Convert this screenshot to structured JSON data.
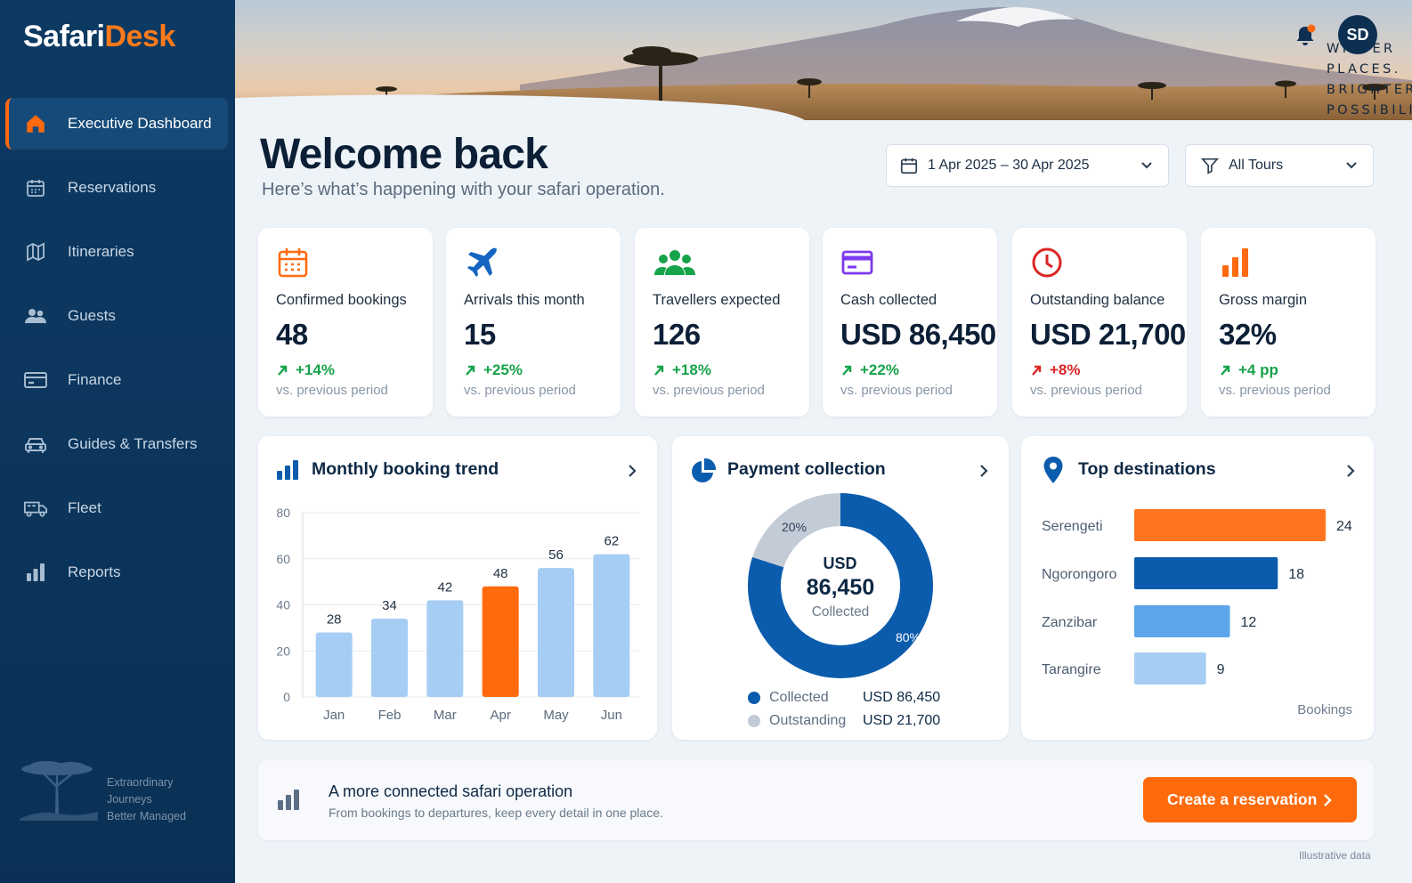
{
  "app": {
    "logo_part1": "Safari",
    "logo_part2": "Desk"
  },
  "sidebar": {
    "items": [
      {
        "label": "Executive Dashboard",
        "icon": "home-icon",
        "active": true
      },
      {
        "label": "Reservations",
        "icon": "calendar-icon"
      },
      {
        "label": "Itineraries",
        "icon": "map-icon"
      },
      {
        "label": "Guests",
        "icon": "users-icon"
      },
      {
        "label": "Finance",
        "icon": "credit-card-icon"
      },
      {
        "label": "Guides & Transfers",
        "icon": "car-icon"
      },
      {
        "label": "Fleet",
        "icon": "truck-icon"
      },
      {
        "label": "Reports",
        "icon": "bar-chart-icon"
      }
    ],
    "footer_tagline": [
      "Extraordinary",
      "Journeys",
      "Better Managed"
    ]
  },
  "header": {
    "tagline_line1": "WILDER PLACES.",
    "tagline_line2": "BRIGHTER POSSIBILITIES.",
    "avatar_initials": "SD"
  },
  "welcome": {
    "title": "Welcome back",
    "subtitle": "Here’s what’s happening with your safari operation."
  },
  "filters": {
    "date_range": "1 Apr 2025 – 30 Apr 2025",
    "tours": "All Tours"
  },
  "kpis": [
    {
      "label": "Confirmed bookings",
      "value": "48",
      "delta": "+14%",
      "period": "vs. previous period",
      "icon": "calendar-icon",
      "color": "#ff6a10",
      "delta_color": "#16a34a"
    },
    {
      "label": "Arrivals this month",
      "value": "15",
      "delta": "+25%",
      "period": "vs. previous period",
      "icon": "airplane-icon",
      "color": "#1565c0",
      "delta_color": "#16a34a"
    },
    {
      "label": "Travellers expected",
      "value": "126",
      "delta": "+18%",
      "period": "vs. previous period",
      "icon": "group-icon",
      "color": "#16a34a",
      "delta_color": "#16a34a"
    },
    {
      "label": "Cash collected",
      "value": "USD 86,450",
      "delta": "+22%",
      "period": "vs. previous period",
      "icon": "credit-card-icon",
      "color": "#7c3aed",
      "delta_color": "#16a34a"
    },
    {
      "label": "Outstanding balance",
      "value": "USD 21,700",
      "delta": "+8%",
      "period": "vs. previous period",
      "icon": "clock-icon",
      "color": "#dc2626",
      "delta_color": "#dc2626"
    },
    {
      "label": "Gross margin",
      "value": "32%",
      "delta": "+4 pp",
      "period": "vs. previous period",
      "icon": "bar-chart-icon",
      "color": "#ff6a10",
      "delta_color": "#16a34a"
    }
  ],
  "panels": {
    "trend_title": "Monthly booking trend",
    "payment_title": "Payment collection",
    "destinations_title": "Top destinations"
  },
  "payment": {
    "center_currency": "USD",
    "center_value": "86,450",
    "center_label": "Collected",
    "legend": [
      {
        "label": "Collected",
        "amount": "USD 86,450",
        "color": "#0b5cad"
      },
      {
        "label": "Outstanding",
        "amount": "USD 21,700",
        "color": "#c3cbd6"
      }
    ]
  },
  "destinations_axis_label": "Bookings",
  "chart_data": [
    {
      "type": "bar",
      "title": "Monthly booking trend",
      "categories": [
        "Jan",
        "Feb",
        "Mar",
        "Apr",
        "May",
        "Jun"
      ],
      "values": [
        28,
        34,
        42,
        48,
        56,
        62
      ],
      "highlight": "Apr",
      "ylim": [
        0,
        80
      ],
      "yticks": [
        0,
        20,
        40,
        60,
        80
      ],
      "grid": true,
      "colors": {
        "default": "#a6cdf3",
        "highlight": "#ff6a0d"
      }
    },
    {
      "type": "pie",
      "title": "Payment collection",
      "labels": [
        "Collected",
        "Outstanding"
      ],
      "values": [
        80,
        20
      ],
      "value_labels": [
        "80%",
        "20%"
      ],
      "colors": [
        "#0b5cad",
        "#c3cbd6"
      ]
    },
    {
      "type": "bar",
      "orientation": "horizontal",
      "title": "Top destinations",
      "categories": [
        "Serengeti",
        "Ngorongoro",
        "Zanzibar",
        "Tarangire"
      ],
      "values": [
        24,
        18,
        12,
        9
      ],
      "xlabel": "Bookings",
      "colors": [
        "#ff7420",
        "#0b5cad",
        "#5da5ea",
        "#a6cdf3"
      ]
    }
  ],
  "cta_strip": {
    "title": "A more connected safari operation",
    "subtitle": "From bookings to departures, keep every detail in one place.",
    "button_label": "Create a reservation"
  },
  "footnote": "Illustrative data"
}
